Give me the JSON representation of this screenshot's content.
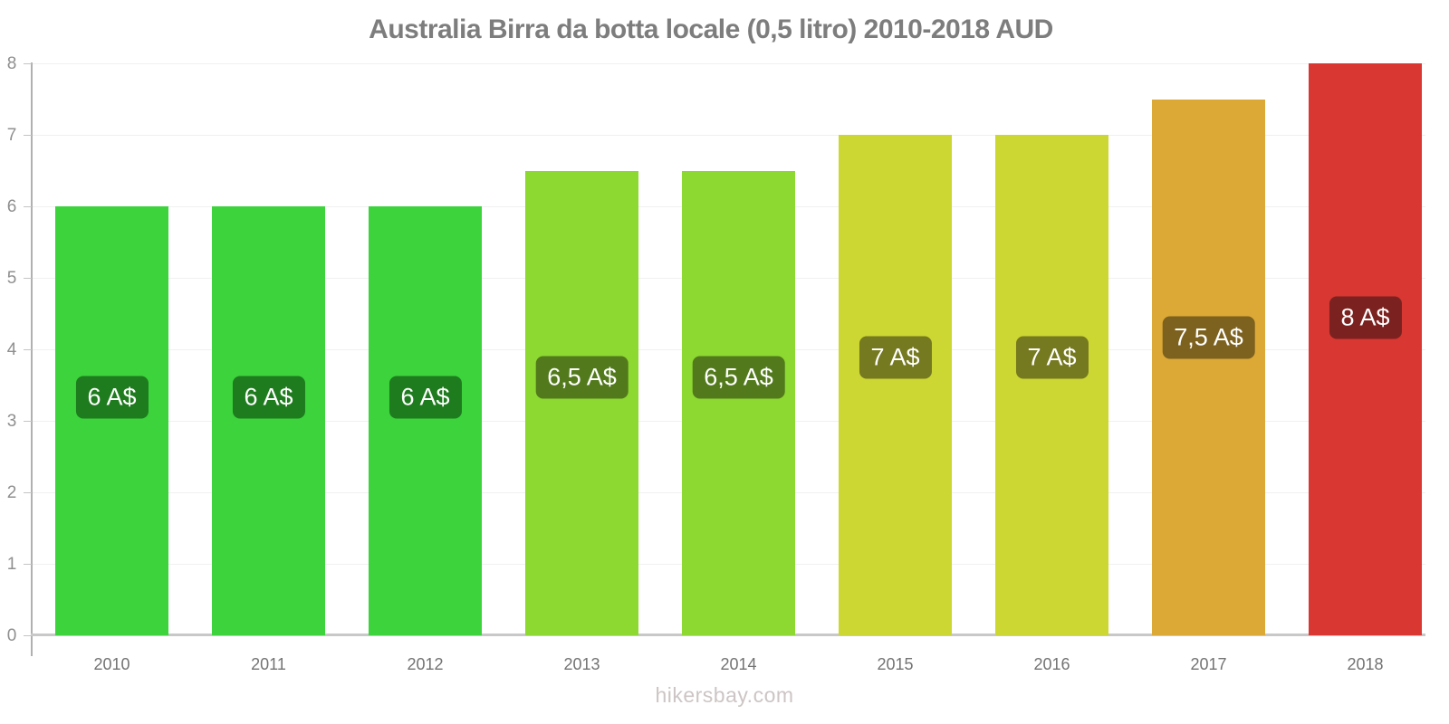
{
  "page": {
    "footer": "hikersbay.com"
  },
  "chart_data": {
    "type": "bar",
    "title": "Australia Birra da botta locale (0,5 litro) 2010-2018 AUD",
    "categories": [
      "2010",
      "2011",
      "2012",
      "2013",
      "2014",
      "2015",
      "2016",
      "2017",
      "2018"
    ],
    "values": [
      6,
      6,
      6,
      6.5,
      6.5,
      7,
      7,
      7.5,
      8
    ],
    "value_labels": [
      "6 A$",
      "6 A$",
      "6 A$",
      "6,5 A$",
      "6,5 A$",
      "7 A$",
      "7 A$",
      "7,5 A$",
      "8 A$"
    ],
    "bar_colors": [
      "#3CD33C",
      "#3CD33C",
      "#3CD33C",
      "#8DD831",
      "#8DD831",
      "#CDD733",
      "#CDD733",
      "#DCA937",
      "#D83732"
    ],
    "label_colors": [
      "#1E7B1E",
      "#1E7B1E",
      "#1E7B1E",
      "#527A1C",
      "#527A1C",
      "#75791F",
      "#75791F",
      "#7D611F",
      "#7B2220"
    ],
    "xlabel": "",
    "ylabel": "",
    "ylim": [
      0,
      8
    ],
    "yticks": [
      0,
      1,
      2,
      3,
      4,
      5,
      6,
      7,
      8
    ],
    "grid": true,
    "legend": false,
    "currency_note": "AUD"
  }
}
